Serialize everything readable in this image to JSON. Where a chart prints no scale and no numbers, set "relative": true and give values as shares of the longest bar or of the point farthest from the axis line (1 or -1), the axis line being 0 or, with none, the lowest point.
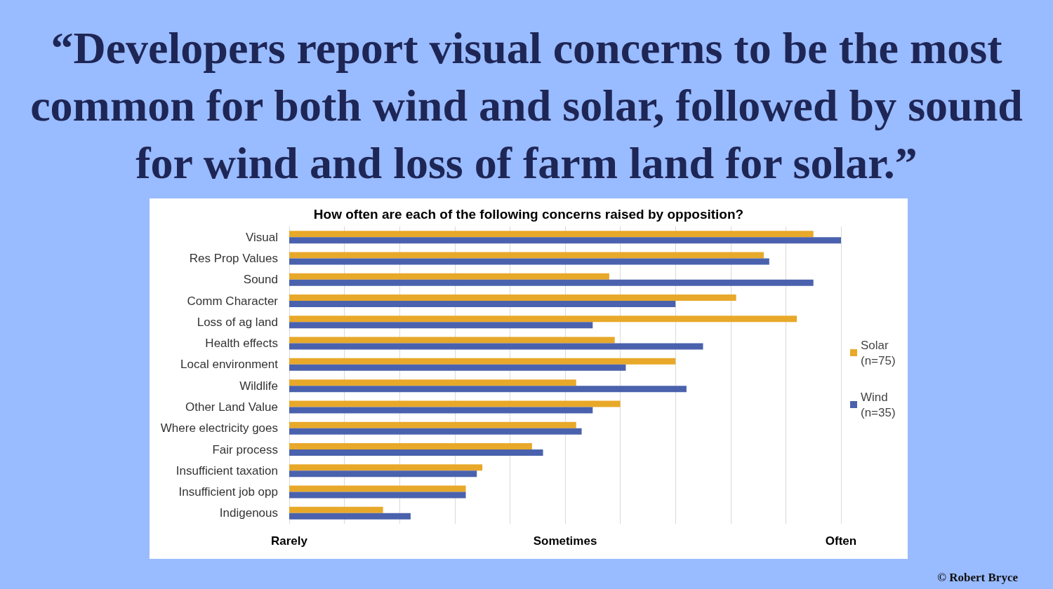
{
  "chart_data": {
    "type": "bar",
    "orientation": "horizontal",
    "relative": true,
    "title": "“Developers report visual concerns to be the most common for both wind and solar, followed by sound for wind and loss of farm land for solar.”",
    "subtitle": "How often are each of the following concerns raised by opposition?",
    "categories": [
      "Visual",
      "Res Prop Values",
      "Sound",
      "Comm Character",
      "Loss of ag land",
      "Health effects",
      "Local environment",
      "Wildlife",
      "Other Land Value",
      "Where electricity goes",
      "Fair process",
      "Insufficient taxation",
      "Insufficient job opp",
      "Indigenous"
    ],
    "series": [
      {
        "name": "Solar (n=75)",
        "color": "#e8a829",
        "values": [
          0.95,
          0.86,
          0.58,
          0.81,
          0.92,
          0.59,
          0.7,
          0.52,
          0.6,
          0.52,
          0.44,
          0.35,
          0.32,
          0.17
        ]
      },
      {
        "name": "Wind (n=35)",
        "color": "#4a62ad",
        "values": [
          1,
          0.87,
          0.95,
          0.7,
          0.55,
          0.75,
          0.61,
          0.72,
          0.55,
          0.53,
          0.46,
          0.34,
          0.32,
          0.22
        ]
      }
    ],
    "grid": "x",
    "legend": "right",
    "annotations": [
      "Rarely",
      "Sometimes",
      "Often",
      "© Robert Bryce"
    ]
  }
}
